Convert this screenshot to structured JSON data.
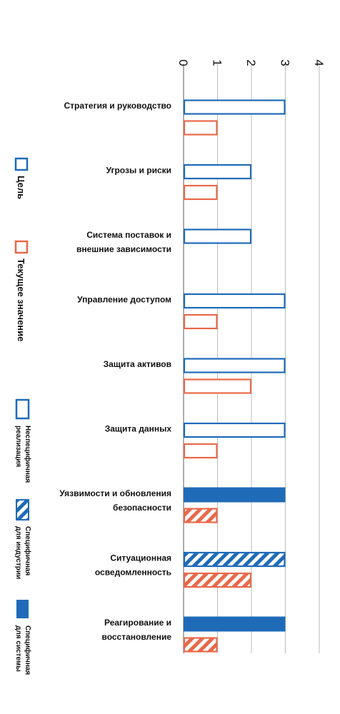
{
  "chart_data": {
    "type": "bar",
    "orientation": "horizontal",
    "axis_ticks": [
      "0",
      "1",
      "2",
      "3",
      "4"
    ],
    "xlim": [
      0,
      4
    ],
    "grid": true,
    "categories": [
      [
        "Стратегия и руководство"
      ],
      [
        "Угрозы и риски"
      ],
      [
        "Система поставок и",
        "внешние зависимости"
      ],
      [
        "Управление доступом"
      ],
      [
        "Защита активов"
      ],
      [
        "Защита данных"
      ],
      [
        "Уязвимости и обновления",
        "безопасности"
      ],
      [
        "Ситуационная",
        "осведомленность"
      ],
      [
        "Реагирование и",
        "восстановление"
      ]
    ],
    "series": [
      {
        "name": "Цель",
        "color": "#1f6bb8",
        "values": [
          3,
          2,
          2,
          3,
          3,
          3,
          3,
          3,
          3
        ],
        "styles": [
          "outline",
          "outline",
          "outline",
          "outline",
          "outline",
          "outline",
          "solid",
          "hatched",
          "solid"
        ]
      },
      {
        "name": "Текущее значение",
        "color": "#e8694a",
        "values": [
          1,
          1,
          null,
          1,
          2,
          1,
          1,
          2,
          1
        ],
        "styles": [
          "outline",
          "outline",
          null,
          "outline",
          "outline",
          "outline",
          "hatched",
          "hatched",
          "hatched"
        ]
      }
    ],
    "legend": {
      "series": [
        "Цель",
        "Текущее значение"
      ],
      "styles": [
        [
          "Неспецифичная",
          "реализация"
        ],
        [
          "Специфичная",
          "для индустрии"
        ],
        [
          "Специфичная",
          "для системы"
        ]
      ],
      "placement": "left"
    }
  }
}
